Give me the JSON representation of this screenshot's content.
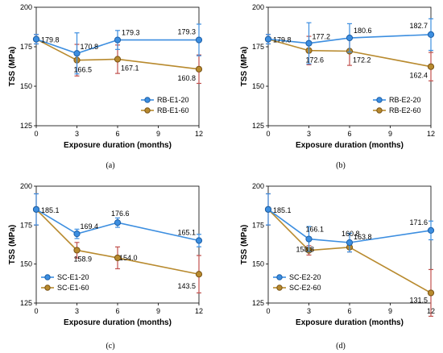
{
  "colors": {
    "series_blue": "#3c8ee0",
    "series_blue_edge": "#1c5fa8",
    "series_orange": "#b88a2e",
    "series_orange_edge": "#7a5316",
    "error_bar": "#c0504d",
    "axis": "#000000"
  },
  "chart_data": [
    {
      "type": "line",
      "caption": "(a)",
      "xlabel": "Exposure duration (months)",
      "ylabel": "TSS (MPa)",
      "xlim": [
        0,
        12
      ],
      "ylim": [
        125,
        200
      ],
      "xticks": [
        0,
        3,
        6,
        9,
        12
      ],
      "yticks": [
        125,
        150,
        175,
        200
      ],
      "legend_position": "lower-right",
      "x": [
        0,
        3,
        6,
        12
      ],
      "series": [
        {
          "name": "RB-E1-20",
          "color": "blue",
          "values": [
            179.8,
            170.8,
            179.3,
            179.3
          ],
          "labels": [
            "179.8",
            "170.8",
            "179.3",
            "179.3"
          ],
          "error": [
            3,
            13,
            6,
            10
          ]
        },
        {
          "name": "RB-E1-60",
          "color": "orange",
          "values": [
            179.8,
            166.5,
            167.1,
            160.8
          ],
          "labels": [
            "",
            "166.5",
            "167.1",
            "160.8"
          ],
          "error": [
            3,
            10,
            9,
            9
          ]
        }
      ]
    },
    {
      "type": "line",
      "caption": "(b)",
      "xlabel": "Exposure duration (months)",
      "ylabel": "TSS (MPa)",
      "xlim": [
        0,
        12
      ],
      "ylim": [
        125,
        200
      ],
      "xticks": [
        0,
        3,
        6,
        9,
        12
      ],
      "yticks": [
        125,
        150,
        175,
        200
      ],
      "legend_position": "lower-right",
      "x": [
        0,
        3,
        6,
        12
      ],
      "series": [
        {
          "name": "RB-E2-20",
          "color": "blue",
          "values": [
            179.8,
            177.2,
            180.6,
            182.7
          ],
          "labels": [
            "179.8",
            "177.2",
            "180.6",
            "182.7"
          ],
          "error": [
            3,
            13,
            9,
            10
          ]
        },
        {
          "name": "RB-E2-60",
          "color": "orange",
          "values": [
            179.8,
            172.6,
            172.2,
            162.4
          ],
          "labels": [
            "",
            "172.6",
            "172.2",
            "162.4"
          ],
          "error": [
            3,
            9,
            9,
            9
          ]
        }
      ]
    },
    {
      "type": "line",
      "caption": "(c)",
      "xlabel": "Exposure duration (months)",
      "ylabel": "TSS (MPa)",
      "xlim": [
        0,
        12
      ],
      "ylim": [
        125,
        200
      ],
      "xticks": [
        0,
        3,
        6,
        9,
        12
      ],
      "yticks": [
        125,
        150,
        175,
        200
      ],
      "legend_position": "lower-left",
      "x": [
        0,
        3,
        6,
        12
      ],
      "series": [
        {
          "name": "SC-E1-20",
          "color": "blue",
          "values": [
            185.1,
            169.4,
            176.6,
            165.1
          ],
          "labels": [
            "185.1",
            "169.4",
            "176.6",
            "165.1"
          ],
          "error": [
            10,
            3,
            3,
            4
          ]
        },
        {
          "name": "SC-E1-60",
          "color": "orange",
          "values": [
            185.1,
            158.9,
            154.0,
            143.5
          ],
          "labels": [
            "",
            "158.9",
            "154.0",
            "143.5"
          ],
          "error": [
            10,
            5,
            7,
            12
          ]
        }
      ]
    },
    {
      "type": "line",
      "caption": "(d)",
      "xlabel": "Exposure duration (months)",
      "ylabel": "TSS (MPa)",
      "xlim": [
        0,
        12
      ],
      "ylim": [
        125,
        200
      ],
      "xticks": [
        0,
        3,
        6,
        9,
        12
      ],
      "yticks": [
        125,
        150,
        175,
        200
      ],
      "legend_position": "lower-left",
      "x": [
        0,
        3,
        6,
        12
      ],
      "series": [
        {
          "name": "SC-E2-20",
          "color": "blue",
          "values": [
            185.1,
            166.1,
            163.8,
            171.6
          ],
          "labels": [
            "185.1",
            "166.1",
            "163.8",
            "171.6"
          ],
          "error": [
            10,
            8,
            6,
            6
          ]
        },
        {
          "name": "SC-E2-60",
          "color": "orange",
          "values": [
            185.1,
            158.8,
            160.8,
            131.5
          ],
          "labels": [
            "",
            "158.8",
            "160.8",
            "131.5"
          ],
          "error": [
            10,
            3,
            3,
            15
          ]
        }
      ]
    }
  ]
}
